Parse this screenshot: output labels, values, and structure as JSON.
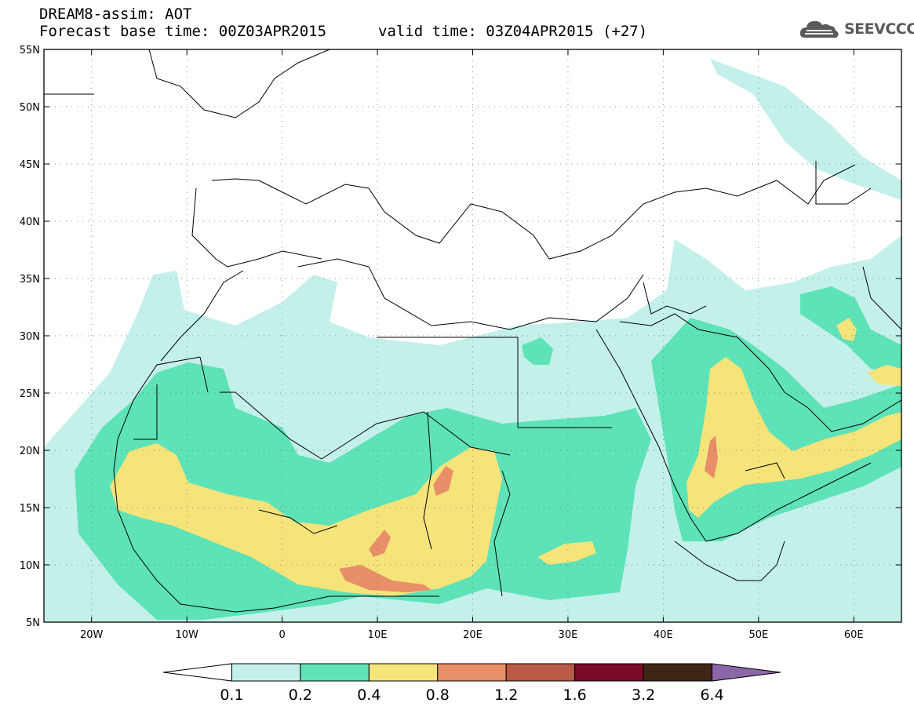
{
  "header": {
    "line1": "DREAM8-assim: AOT",
    "line2": "Forecast base time: 00Z03APR2015",
    "line3": "valid time: 03Z04APR2015 (+27)",
    "logo_text": "SEEVCCC",
    "logo_icon": "cloud-icon"
  },
  "map": {
    "lon_range": [
      -25,
      65
    ],
    "lat_range": [
      5,
      55
    ],
    "x_ticks": [
      {
        "lon": -20,
        "label": "20W"
      },
      {
        "lon": -10,
        "label": "10W"
      },
      {
        "lon": 0,
        "label": "0"
      },
      {
        "lon": 10,
        "label": "10E"
      },
      {
        "lon": 20,
        "label": "20E"
      },
      {
        "lon": 30,
        "label": "30E"
      },
      {
        "lon": 40,
        "label": "40E"
      },
      {
        "lon": 50,
        "label": "50E"
      },
      {
        "lon": 60,
        "label": "60E"
      }
    ],
    "y_ticks": [
      {
        "lat": 55,
        "label": "55N"
      },
      {
        "lat": 50,
        "label": "50N"
      },
      {
        "lat": 45,
        "label": "45N"
      },
      {
        "lat": 40,
        "label": "40N"
      },
      {
        "lat": 35,
        "label": "35N"
      },
      {
        "lat": 30,
        "label": "30N"
      },
      {
        "lat": 25,
        "label": "25N"
      },
      {
        "lat": 20,
        "label": "20N"
      },
      {
        "lat": 15,
        "label": "15N"
      },
      {
        "lat": 10,
        "label": "10N"
      },
      {
        "lat": 5,
        "label": "5N"
      }
    ],
    "grid": "dotted"
  },
  "colorbar": {
    "labels": [
      "0.1",
      "0.2",
      "0.4",
      "0.8",
      "1.2",
      "1.6",
      "3.2",
      "6.4"
    ],
    "colors": [
      "#ffffff",
      "#c4f0ea",
      "#5ee2b8",
      "#f5e47a",
      "#e88e68",
      "#b85a45",
      "#7a0a25",
      "#3f2614",
      "#8b66a8"
    ]
  },
  "fields": {
    "c02": "#c4f0ea",
    "c04": "#5ee2b8",
    "c08": "#f5e47a",
    "c12": "#e88e68",
    "coast": "#000000"
  }
}
